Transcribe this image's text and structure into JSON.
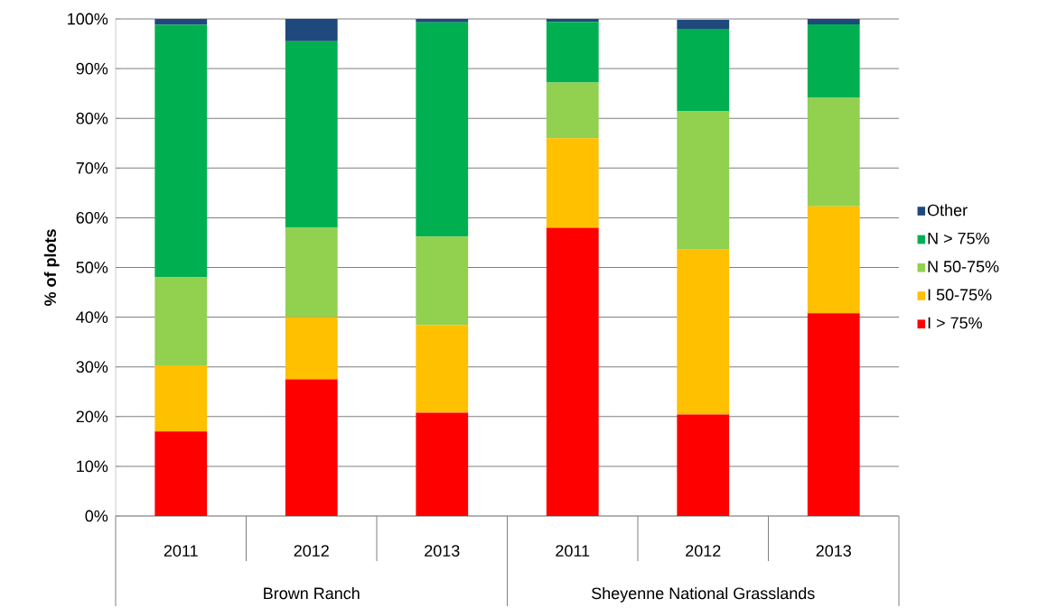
{
  "chart_data": {
    "type": "bar",
    "stacked": true,
    "ylabel": "% of plots",
    "categories": [
      "2011",
      "2012",
      "2013",
      "2011",
      "2012",
      "2013"
    ],
    "annotations": [
      "Brown Ranch",
      "Sheyenne National Grasslands"
    ],
    "series": [
      {
        "name": "I > 75%",
        "color": "#ff0000",
        "values": [
          17,
          27.5,
          20.8,
          58,
          20.4,
          40.8
        ]
      },
      {
        "name": "I 50-75%",
        "color": "#ffc000",
        "values": [
          13.3,
          12.5,
          17.6,
          18,
          33.2,
          21.5
        ]
      },
      {
        "name": "N 50-75%",
        "color": "#92d050",
        "values": [
          17.7,
          18,
          17.8,
          11.2,
          27.8,
          21.8
        ]
      },
      {
        "name": "N > 75%",
        "color": "#00b050",
        "values": [
          50.8,
          37.5,
          43.1,
          12.2,
          16.6,
          14.8
        ]
      },
      {
        "name": "Other",
        "color": "#1f497d",
        "values": [
          1.2,
          4.5,
          0.7,
          0.6,
          1.8,
          1.1
        ]
      }
    ],
    "ylim": [
      0,
      100
    ],
    "yticks": [
      {
        "value": 0,
        "label": "0%"
      },
      {
        "value": 10,
        "label": "10%"
      },
      {
        "value": 20,
        "label": "20%"
      },
      {
        "value": 30,
        "label": "30%"
      },
      {
        "value": 40,
        "label": "40%"
      },
      {
        "value": 50,
        "label": "50%"
      },
      {
        "value": 60,
        "label": "60%"
      },
      {
        "value": 70,
        "label": "70%"
      },
      {
        "value": 80,
        "label": "80%"
      },
      {
        "value": 90,
        "label": "90%"
      },
      {
        "value": 100,
        "label": "100%"
      }
    ],
    "grid": "y",
    "legend": "right"
  }
}
